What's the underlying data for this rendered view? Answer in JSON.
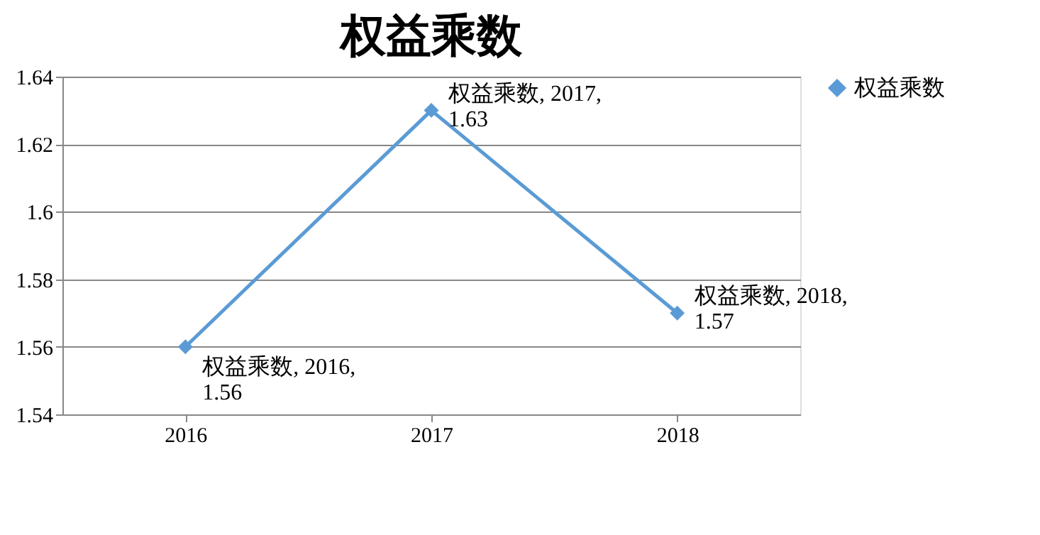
{
  "chart_data": {
    "type": "line",
    "title": "权益乘数",
    "categories": [
      "2016",
      "2017",
      "2018"
    ],
    "series": [
      {
        "name": "权益乘数",
        "color": "#5b9bd5",
        "values": [
          1.56,
          1.63,
          1.57
        ],
        "value_labels": [
          "权益乘数, 2016, 1.56",
          "权益乘数, 2017, 1.63",
          "权益乘数, 2018, 1.57"
        ]
      }
    ],
    "ylim": [
      1.54,
      1.64
    ],
    "yticks": [
      1.54,
      1.56,
      1.58,
      1.6,
      1.62,
      1.64
    ],
    "grid": "y",
    "legend": "right",
    "marker": "diamond",
    "line_style": "solid"
  }
}
